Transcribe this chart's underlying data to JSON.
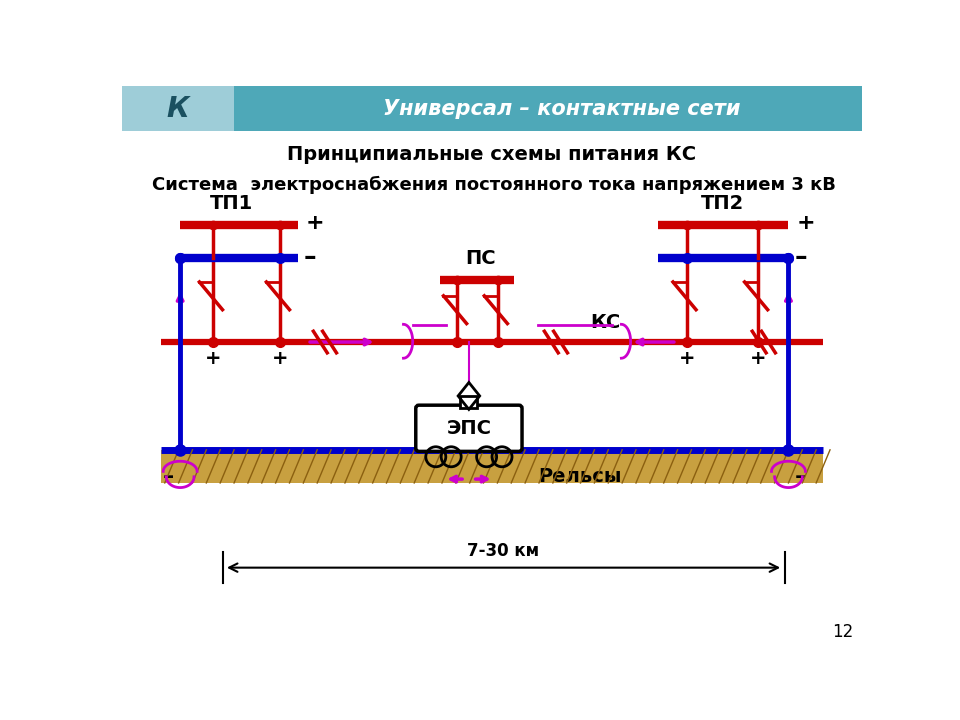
{
  "title_main": "Принципиальные схемы питания КС",
  "subtitle": "Система  электроснабжения постоянного тока напряжением 3 кВ",
  "header_text": "Универсал – контактные сети",
  "page_num": "12",
  "bg_color": "#ffffff",
  "header_bg": "#4ea8b8",
  "header_logo_bg": "#9ecdd8",
  "red": "#cc0000",
  "blue": "#0000cc",
  "magenta": "#cc00cc",
  "black": "#000000",
  "ground_color": "#c8a040",
  "ground_line": "#8b6010",
  "tp1_label": "ТП1",
  "tp2_label": "ТП2",
  "ps_label": "ПС",
  "ks_label": "КС",
  "rail_label": "Рельсы",
  "eps_label": "ЭПС",
  "dim_label": "7-30 км",
  "plus": "+",
  "minus": "–"
}
